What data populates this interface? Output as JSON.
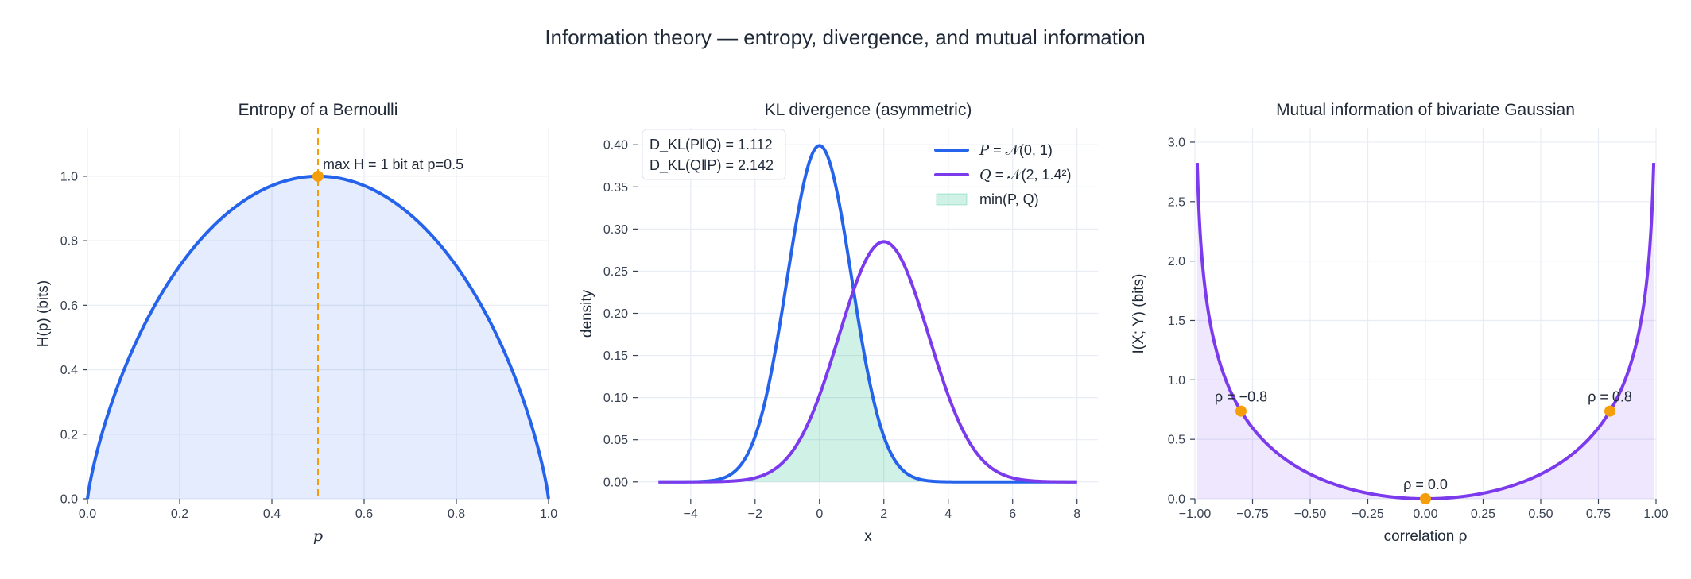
{
  "title": "Information theory  —  entropy, divergence, and mutual information",
  "colors": {
    "blue": "#2563eb",
    "purple": "#7c3aed",
    "orange": "#f59e0b",
    "green": "#10b981",
    "grid": "#e8ecf4",
    "text": "#1f2937"
  },
  "chart_data": [
    {
      "type": "area",
      "title": "Entropy of a Bernoulli",
      "xlabel": "p",
      "ylabel": "H(p)  (bits)",
      "function": "H(p) = -p log2 p - (1-p) log2 (1-p)",
      "x_range": [
        0,
        1
      ],
      "xlim": [
        0,
        1
      ],
      "ylim": [
        0,
        1.15
      ],
      "xticks": [
        "0.0",
        "0.2",
        "0.4",
        "0.6",
        "0.8",
        "1.0"
      ],
      "yticks": [
        "0.0",
        "0.2",
        "0.4",
        "0.6",
        "0.8",
        "1.0"
      ],
      "grid": true,
      "vline": {
        "x": 0.5,
        "style": "dashed",
        "color": "#f59e0b"
      },
      "marker": {
        "x": 0.5,
        "y": 1.0
      },
      "annotation": "max H = 1 bit at p=0.5"
    },
    {
      "type": "line",
      "title": "KL divergence (asymmetric)",
      "xlabel": "x",
      "ylabel": "density",
      "x_range": [
        -5,
        8
      ],
      "xlim": [
        -5.65,
        8.65
      ],
      "ylim": [
        -0.02,
        0.42
      ],
      "xticks": [
        "−4",
        "−2",
        "0",
        "2",
        "4",
        "6",
        "8"
      ],
      "yticks": [
        "0.00",
        "0.05",
        "0.10",
        "0.15",
        "0.20",
        "0.25",
        "0.30",
        "0.35",
        "0.40"
      ],
      "grid": true,
      "series": [
        {
          "name": "P = N(0, 1)",
          "mean": 0,
          "sd": 1,
          "color": "#2563eb"
        },
        {
          "name": "Q = N(2, 1.4²)",
          "mean": 2,
          "sd": 1.4,
          "color": "#7c3aed"
        }
      ],
      "fill": {
        "name": "min(P, Q)",
        "color": "#10b981"
      },
      "legend_position": "top-right",
      "legend": [
        {
          "prefix": "P",
          "text": " = 𝒩(0, 1)"
        },
        {
          "prefix": "Q",
          "text": " = 𝒩(2, 1.4²)"
        },
        {
          "prefix": "",
          "text": "min(P, Q)"
        }
      ],
      "annotation_box": [
        "D_KL(P‖Q) = 1.112",
        "D_KL(Q‖P) = 2.142"
      ],
      "kl_pq": 1.112,
      "kl_qp": 2.142
    },
    {
      "type": "area",
      "title": "Mutual information of bivariate Gaussian",
      "xlabel": "correlation  ρ",
      "ylabel": "I(X; Y)  (bits)",
      "function": "I(ρ) = -0.5 log2(1 - ρ²)",
      "x_range": [
        -0.99,
        0.99
      ],
      "xlim": [
        -1,
        1
      ],
      "ylim": [
        0,
        3.12
      ],
      "xticks": [
        "−1.00",
        "−0.75",
        "−0.50",
        "−0.25",
        "0.00",
        "0.25",
        "0.50",
        "0.75",
        "1.00"
      ],
      "yticks": [
        "0.0",
        "0.5",
        "1.0",
        "1.5",
        "2.0",
        "2.5",
        "3.0"
      ],
      "grid": true,
      "points": [
        {
          "x": -0.8,
          "y": 0.737,
          "label": "ρ = −0.8"
        },
        {
          "x": 0.0,
          "y": 0.0,
          "label": "ρ = 0.0"
        },
        {
          "x": 0.8,
          "y": 0.737,
          "label": "ρ = 0.8"
        }
      ]
    }
  ]
}
